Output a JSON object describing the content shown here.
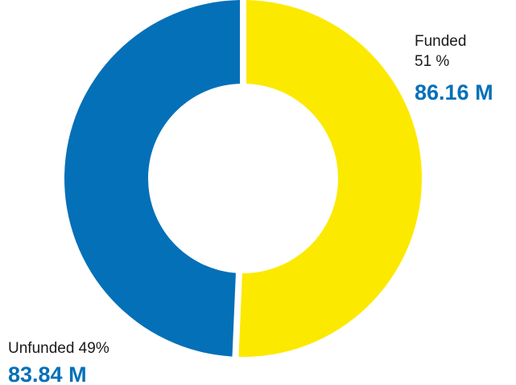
{
  "colors": {
    "funded": "#fce900",
    "unfunded": "#0470b8",
    "value_text": "#0470b8",
    "gap": "#ffffff"
  },
  "chart_data": {
    "type": "pie",
    "subtype": "donut",
    "title": "",
    "unit": "M",
    "slices": [
      {
        "name": "Funded",
        "percent_label": "51 %",
        "value_label": "86.16 M",
        "value": 86.16,
        "percent": 51
      },
      {
        "name": "Unfunded",
        "percent_label": "49%",
        "value_label": "83.84 M",
        "value": 83.84,
        "percent": 49
      }
    ],
    "legend": "none"
  },
  "labels": {
    "funded_name": "Funded",
    "funded_pct": "51 %",
    "funded_value": "86.16 M",
    "unfunded_name": "Unfunded 49%",
    "unfunded_value": "83.84 M"
  }
}
